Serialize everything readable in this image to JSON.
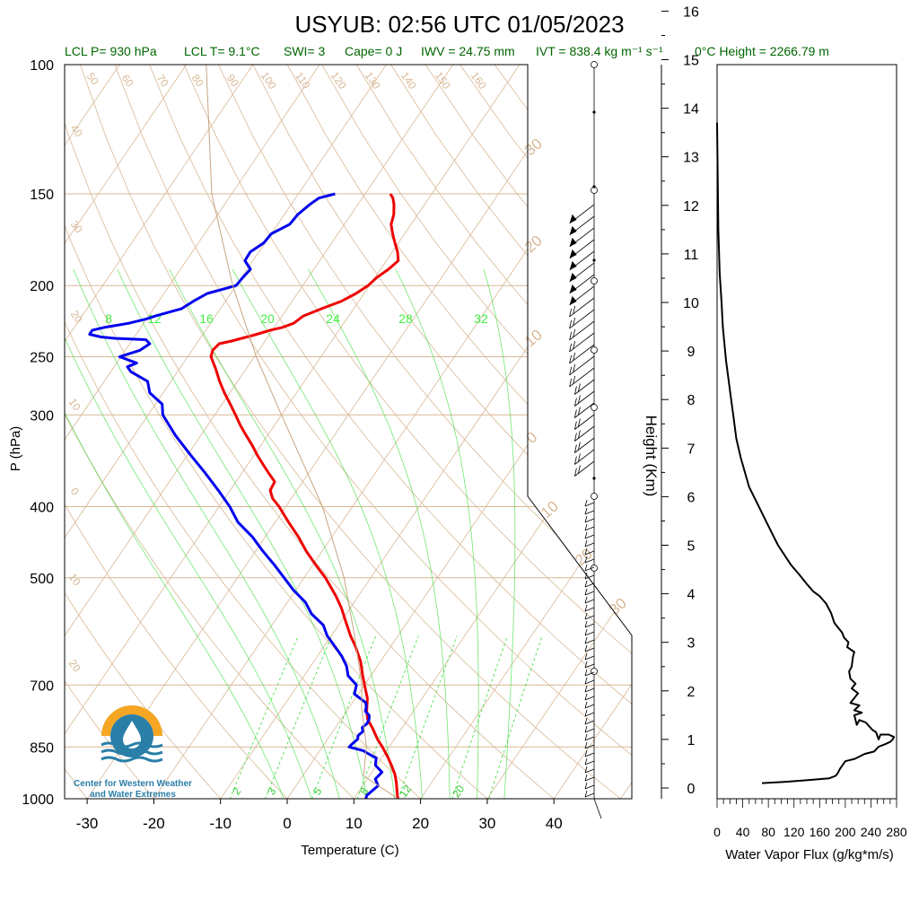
{
  "title": "USYUB: 02:56 UTC 01/05/2023",
  "stats": [
    {
      "id": "lclp",
      "text": "LCL P= 930 hPa"
    },
    {
      "id": "lclt",
      "text": "LCL T= 9.1°C"
    },
    {
      "id": "swi",
      "text": "SWI= 3"
    },
    {
      "id": "cape",
      "text": "Cape= 0 J"
    },
    {
      "id": "iwv",
      "text": "IWV = 24.75 mm"
    },
    {
      "id": "ivt",
      "text": "IVT = 838.4 kg m⁻¹ s⁻¹"
    },
    {
      "id": "frz",
      "text": "0°C Height = 2266.79 m"
    }
  ],
  "logo_text": [
    "Center for Western Weather",
    "and Water Extremes"
  ],
  "colors": {
    "temperature": "#ee0000",
    "dewpoint": "#0000ee",
    "isotherm": "#d8b896",
    "mixing_ratio": "#33dd33",
    "stats_text": "#006600",
    "logo_orange": "#f5a623",
    "logo_blue": "#2a7fa8"
  },
  "chart_data": [
    {
      "type": "line",
      "name": "skew-T",
      "xlabel": "Temperature (C)",
      "ylabel": "P (hPa)",
      "xticks": [
        -30,
        -20,
        -10,
        0,
        10,
        20,
        30,
        40
      ],
      "yticks": [
        100,
        150,
        200,
        250,
        300,
        400,
        500,
        700,
        850,
        1000
      ],
      "xlim": [
        -34,
        52
      ],
      "ylim": [
        1050,
        100
      ],
      "isotherm_labels": [
        "50",
        "60",
        "70",
        "80",
        "90",
        "100",
        "110",
        "120",
        "130",
        "140",
        "150",
        "160",
        "40",
        "30",
        "20",
        "10",
        "0",
        "10",
        "20"
      ],
      "adiabat_labels": [
        "30",
        "20",
        "10",
        "0",
        "10",
        "20",
        "30"
      ],
      "mixing_ratio_top_labels": [
        "8",
        "12",
        "16",
        "20",
        "24",
        "28",
        "32"
      ],
      "mixing_ratio_bottom_labels": [
        "2",
        "3",
        "5",
        "8",
        "12",
        "20"
      ],
      "series": [
        {
          "name": "temperature",
          "p": [
            1000,
            990,
            950,
            925,
            900,
            880,
            850,
            830,
            800,
            780,
            760,
            750,
            730,
            700,
            680,
            650,
            620,
            600,
            570,
            550,
            530,
            500,
            480,
            460,
            440,
            420,
            400,
            390,
            380,
            370,
            360,
            350,
            340,
            330,
            320,
            310,
            300,
            290,
            280,
            270,
            260,
            250,
            245,
            240,
            238,
            236,
            234,
            232,
            230,
            228,
            225,
            220,
            215,
            210,
            205,
            200,
            195,
            190,
            185,
            180,
            175,
            170,
            165,
            160,
            155,
            152,
            150
          ],
          "t": [
            16.6,
            16.2,
            14.7,
            13.6,
            12.2,
            11.0,
            9.0,
            7.5,
            5.5,
            4.0,
            3.0,
            2.6,
            1.8,
            0.0,
            -1.2,
            -3.0,
            -5.3,
            -7.1,
            -9.6,
            -11.3,
            -13.3,
            -16.8,
            -19.6,
            -22.4,
            -25.0,
            -28.0,
            -31.0,
            -32.8,
            -34.0,
            -34.2,
            -36.0,
            -37.8,
            -39.6,
            -41.3,
            -43.2,
            -45.1,
            -46.9,
            -48.8,
            -50.8,
            -52.7,
            -54.5,
            -56.5,
            -56.9,
            -56.6,
            -55.0,
            -53.8,
            -52.5,
            -51.4,
            -50.3,
            -48.8,
            -47.5,
            -46.8,
            -44.8,
            -42.6,
            -41.2,
            -40.2,
            -39.7,
            -38.8,
            -38.2,
            -39.2,
            -40.5,
            -41.8,
            -43.0,
            -43.6,
            -44.6,
            -45.4,
            -46.2
          ]
        },
        {
          "name": "dewpoint",
          "p": [
            1000,
            990,
            960,
            940,
            920,
            900,
            880,
            870,
            860,
            850,
            840,
            830,
            820,
            810,
            800,
            790,
            780,
            770,
            760,
            750,
            740,
            720,
            700,
            680,
            660,
            640,
            620,
            600,
            580,
            560,
            540,
            520,
            500,
            480,
            460,
            440,
            420,
            400,
            380,
            360,
            340,
            320,
            300,
            290,
            280,
            270,
            262,
            258,
            255,
            250,
            245,
            240,
            237,
            236,
            235,
            233,
            230,
            228,
            225,
            222,
            220,
            215,
            210,
            205,
            200,
            195,
            190,
            185,
            180,
            175,
            170,
            165,
            160,
            155,
            152,
            150
          ],
          "t": [
            11.8,
            11.6,
            12.3,
            11.2,
            11.5,
            9.8,
            9.2,
            7.8,
            6.5,
            4.0,
            4.2,
            4.5,
            4.2,
            4.5,
            4.0,
            4.3,
            4.2,
            3.8,
            2.8,
            2.5,
            2.0,
            -0.6,
            -1.2,
            -3.4,
            -4.6,
            -6.3,
            -8.4,
            -10.6,
            -12.3,
            -15.2,
            -17.3,
            -20.3,
            -23.0,
            -25.8,
            -28.9,
            -31.9,
            -35.6,
            -38.4,
            -41.8,
            -45.5,
            -49.6,
            -53.8,
            -57.8,
            -59.0,
            -62.0,
            -63.5,
            -67.0,
            -68.0,
            -67.0,
            -70.2,
            -67.8,
            -67.0,
            -68.0,
            -72.8,
            -75.0,
            -77.0,
            -77.0,
            -75.5,
            -72.2,
            -70.0,
            -69.0,
            -65.8,
            -64.8,
            -63.5,
            -60.0,
            -59.8,
            -59.5,
            -61.2,
            -61.3,
            -60.2,
            -60.0,
            -58.2,
            -58.0,
            -57.2,
            -56.5,
            -54.5
          ]
        },
        {
          "name": "parcel",
          "p": [
            1000,
            930,
            850,
            750,
            700,
            600,
            500,
            400,
            300,
            250,
            200,
            150,
            100
          ],
          "t": [
            16.6,
            9.1,
            6.6,
            1.8,
            -0.4,
            -6.5,
            -14.0,
            -24.5,
            -40.0,
            -49.7,
            -60.5,
            -73.0,
            -87.0
          ]
        }
      ]
    },
    {
      "type": "line",
      "name": "water-vapor-flux",
      "xlabel": "Water Vapor Flux (g/kg*m/s)",
      "ylabel": "Height (Km)",
      "xticks": [
        0,
        40,
        80,
        120,
        160,
        200,
        240,
        280
      ],
      "yticks": [
        0,
        1,
        2,
        3,
        4,
        5,
        6,
        7,
        8,
        9,
        10,
        11,
        12,
        13,
        14,
        15,
        16
      ],
      "xlim": [
        0,
        285
      ],
      "ylim": [
        0,
        16.4
      ],
      "series": [
        {
          "name": "flux",
          "x": [
            70,
            110,
            150,
            175,
            185,
            188,
            192,
            200,
            215,
            230,
            245,
            252,
            262,
            270,
            274,
            276,
            268,
            255,
            252,
            248,
            242,
            232,
            222,
            218,
            214,
            226,
            214,
            222,
            208,
            220,
            210,
            216,
            208,
            206,
            210,
            212,
            214,
            203,
            205,
            198,
            195,
            183,
            178,
            170,
            160,
            150,
            140,
            128,
            115,
            95,
            80,
            65,
            50,
            37,
            30,
            26,
            22,
            14,
            9,
            7,
            4,
            2,
            0
          ],
          "h": [
            0.1,
            0.13,
            0.17,
            0.2,
            0.25,
            0.3,
            0.4,
            0.55,
            0.6,
            0.7,
            0.75,
            0.85,
            0.9,
            0.95,
            1.0,
            1.05,
            1.1,
            1.1,
            1.0,
            1.15,
            1.2,
            1.35,
            1.4,
            1.3,
            1.5,
            1.55,
            1.6,
            1.7,
            1.75,
            1.95,
            2.05,
            2.15,
            2.25,
            2.4,
            2.5,
            2.7,
            2.8,
            2.9,
            3.0,
            3.1,
            3.2,
            3.4,
            3.6,
            3.8,
            3.95,
            4.05,
            4.2,
            4.4,
            4.6,
            5.0,
            5.4,
            5.8,
            6.2,
            6.8,
            7.2,
            7.6,
            8.0,
            8.8,
            9.5,
            10.0,
            10.6,
            11.5,
            13.7
          ]
        }
      ]
    }
  ]
}
